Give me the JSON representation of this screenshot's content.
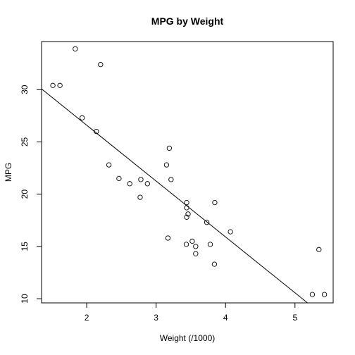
{
  "chart_data": {
    "type": "scatter",
    "title": "MPG by Weight",
    "xlabel": "Weight (/1000)",
    "ylabel": "MPG",
    "xlim": [
      1.35,
      5.55
    ],
    "ylim": [
      9.6,
      34.6
    ],
    "xticks": [
      2,
      3,
      4,
      5
    ],
    "yticks": [
      10,
      15,
      20,
      25,
      30
    ],
    "grid": false,
    "legend": "none",
    "point_style": "open-circle",
    "points": [
      {
        "x": 1.513,
        "y": 30.4
      },
      {
        "x": 1.615,
        "y": 30.4
      },
      {
        "x": 1.835,
        "y": 33.9
      },
      {
        "x": 1.935,
        "y": 27.3
      },
      {
        "x": 2.14,
        "y": 26.0
      },
      {
        "x": 2.2,
        "y": 32.4
      },
      {
        "x": 2.32,
        "y": 22.8
      },
      {
        "x": 2.465,
        "y": 21.5
      },
      {
        "x": 2.62,
        "y": 21.0
      },
      {
        "x": 2.77,
        "y": 19.7
      },
      {
        "x": 2.78,
        "y": 21.4
      },
      {
        "x": 2.875,
        "y": 21.0
      },
      {
        "x": 3.15,
        "y": 22.8
      },
      {
        "x": 3.17,
        "y": 15.8
      },
      {
        "x": 3.19,
        "y": 24.4
      },
      {
        "x": 3.215,
        "y": 21.4
      },
      {
        "x": 3.435,
        "y": 15.2
      },
      {
        "x": 3.44,
        "y": 18.7
      },
      {
        "x": 3.44,
        "y": 19.2
      },
      {
        "x": 3.44,
        "y": 17.8
      },
      {
        "x": 3.46,
        "y": 18.1
      },
      {
        "x": 3.52,
        "y": 15.5
      },
      {
        "x": 3.57,
        "y": 15.0
      },
      {
        "x": 3.57,
        "y": 14.3
      },
      {
        "x": 3.73,
        "y": 17.3
      },
      {
        "x": 3.78,
        "y": 15.2
      },
      {
        "x": 3.84,
        "y": 13.3
      },
      {
        "x": 3.845,
        "y": 19.2
      },
      {
        "x": 4.07,
        "y": 16.4
      },
      {
        "x": 5.25,
        "y": 10.4
      },
      {
        "x": 5.345,
        "y": 14.7
      },
      {
        "x": 5.424,
        "y": 10.4
      }
    ],
    "fit_line": {
      "intercept": 37.285,
      "slope": -5.344
    }
  }
}
